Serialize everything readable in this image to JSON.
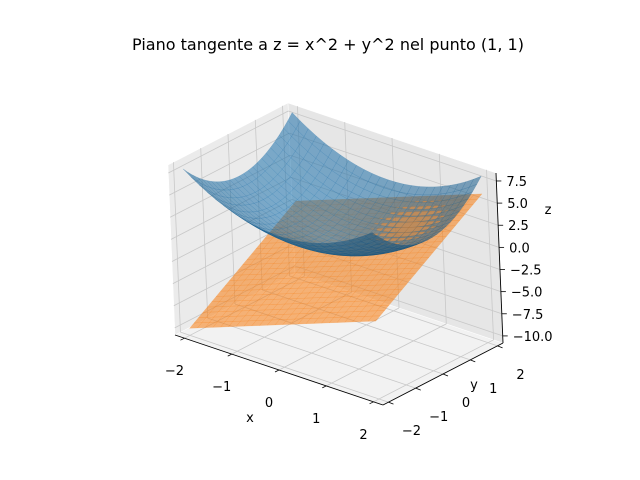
{
  "chart_data": {
    "type": "surface3d",
    "title": "Piano tangente a z = x^2 + y^2 nel punto (1, 1)",
    "xlabel": "x",
    "ylabel": "y",
    "zlabel": "z",
    "xlim": [
      -2.2,
      2.2
    ],
    "ylim": [
      -2.2,
      2.2
    ],
    "zlim": [
      -10.8,
      8.4
    ],
    "x_ticks": [
      -2,
      -1,
      0,
      1,
      2
    ],
    "x_tick_labels": [
      "−2",
      "−1",
      "0",
      "1",
      "2"
    ],
    "y_ticks": [
      -2,
      -1,
      0,
      1,
      2
    ],
    "y_tick_labels": [
      "−2",
      "−1",
      "0",
      "1",
      "2"
    ],
    "z_ticks": [
      -10,
      -7.5,
      -5,
      -2.5,
      0,
      2.5,
      5,
      7.5
    ],
    "z_tick_labels": [
      "−10.0",
      "−7.5",
      "−5.0",
      "−2.5",
      "0.0",
      "2.5",
      "5.0",
      "7.5"
    ],
    "grid": true,
    "series": [
      {
        "expression": "z = x^2 + y^2",
        "domain": {
          "x": [
            -2,
            2
          ],
          "y": [
            -2,
            2
          ]
        },
        "color": "#1f77b4"
      },
      {
        "expression": "z = 2x + 2y - 2",
        "domain": {
          "x": [
            -2,
            2
          ],
          "y": [
            -2,
            2
          ]
        },
        "color": "#ff7f0e"
      }
    ]
  }
}
